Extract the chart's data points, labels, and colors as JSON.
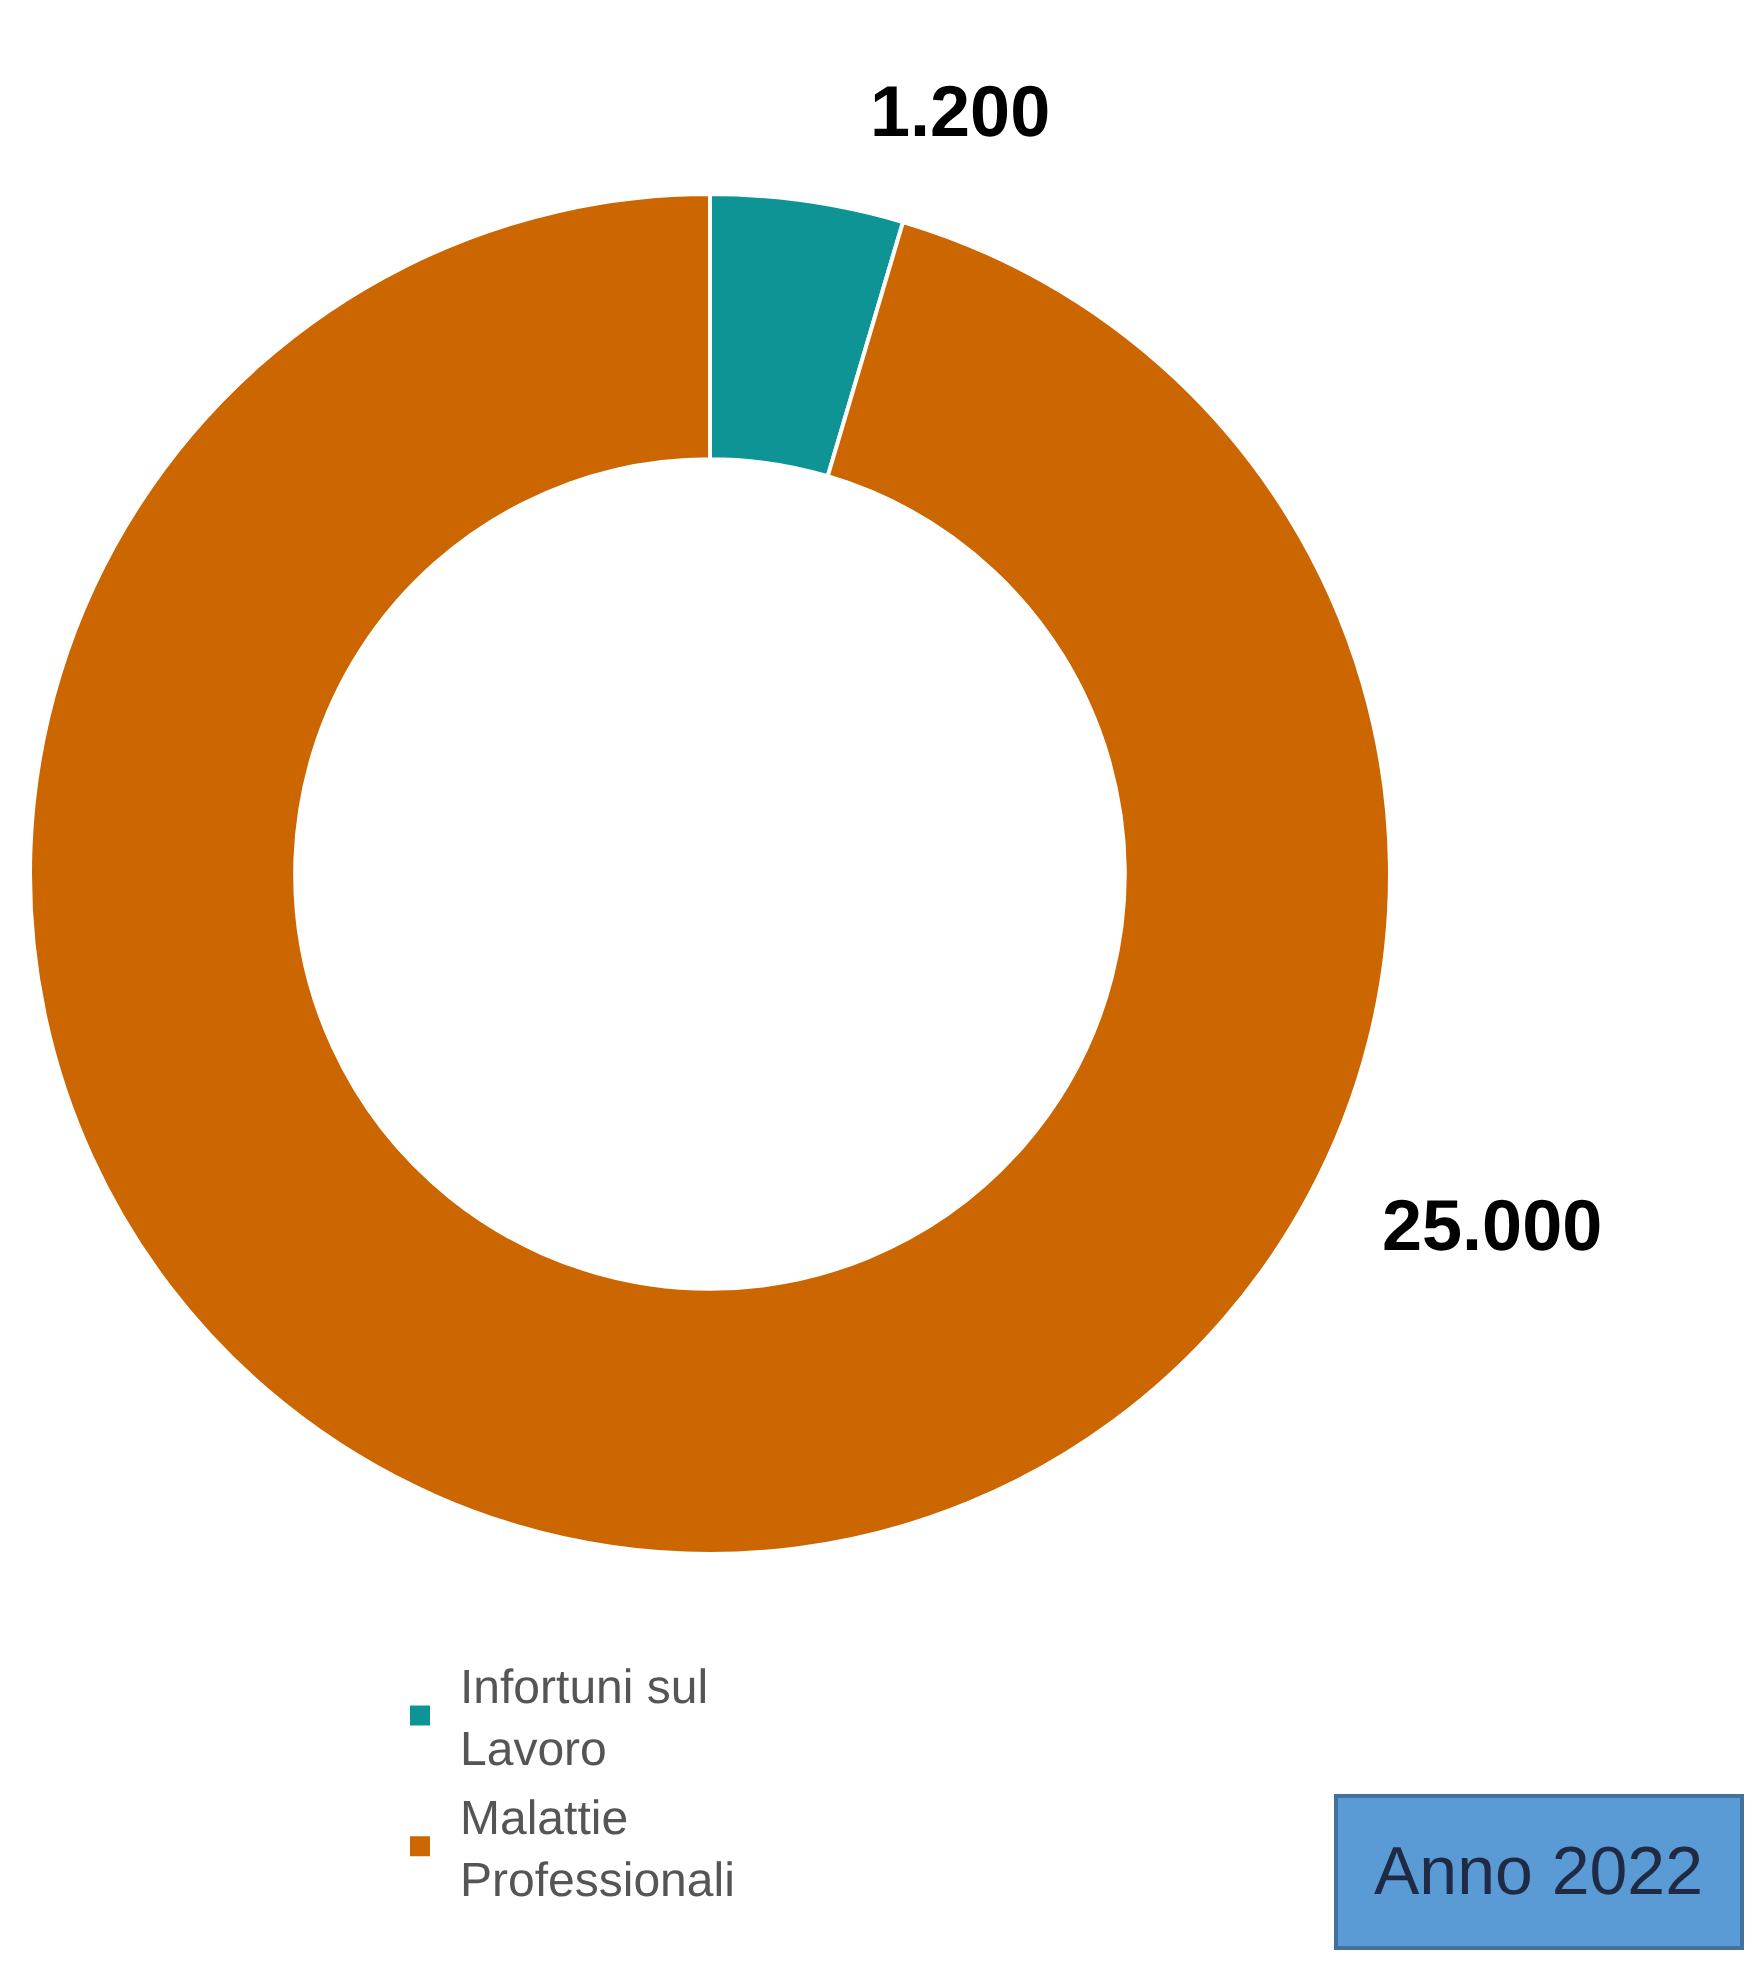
{
  "chart_data": {
    "type": "donut",
    "categories": [
      "Infortuni sul Lavoro",
      "Malattie Professionali"
    ],
    "values": [
      1200,
      25000
    ],
    "colors": [
      "#0e9494",
      "#cc6600"
    ],
    "value_labels": [
      "1.200",
      "25.000"
    ],
    "legend": "bottom left",
    "annotations": [
      "Anno 2022"
    ]
  }
}
